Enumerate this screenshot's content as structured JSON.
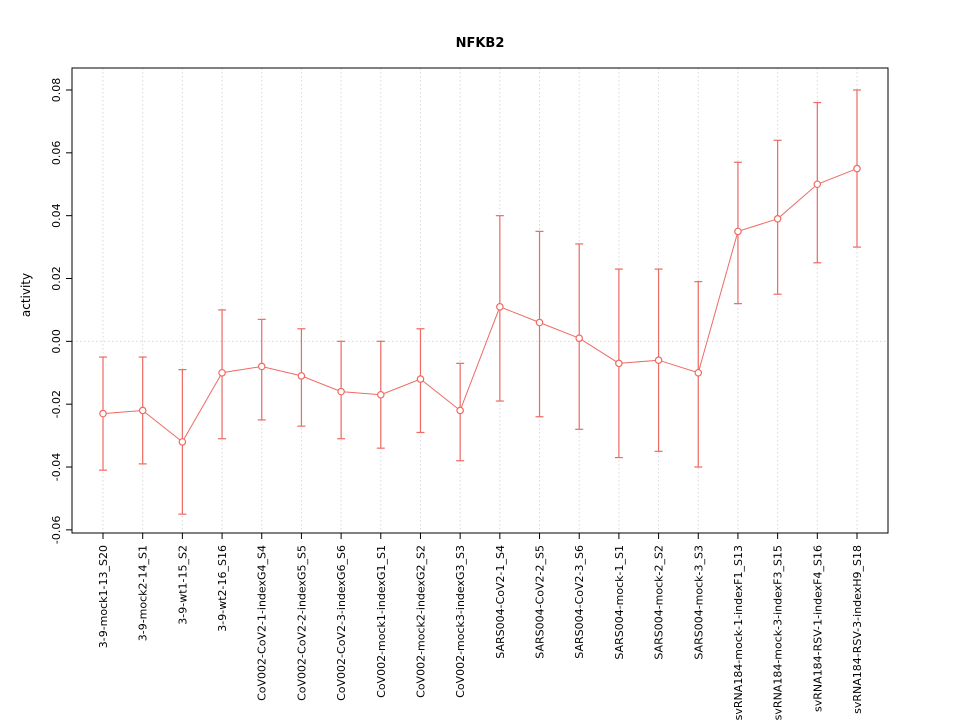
{
  "chart_data": {
    "type": "line",
    "title": "NFKB2",
    "ylabel": "activity",
    "xlabel": "",
    "ylim": [
      -0.06,
      0.08
    ],
    "y_ticks": [
      -0.06,
      -0.04,
      -0.02,
      0.0,
      0.02,
      0.04,
      0.06,
      0.08
    ],
    "legend": "none",
    "grid": {
      "vertical": "dotted-at-each-category",
      "horizontal_at": 0,
      "color": "#d8d8d8"
    },
    "color": "#ee6a63",
    "point_style": "open-circle-with-error-bars",
    "categories": [
      "3-9-mock1-13_S20",
      "3-9-mock2-14_S1",
      "3-9-wt1-15_S2",
      "3-9-wt2-16_S16",
      "CoV002-CoV2-1-indexG4_S4",
      "CoV002-CoV2-2-indexG5_S5",
      "CoV002-CoV2-3-indexG6_S6",
      "CoV002-mock1-indexG1_S1",
      "CoV002-mock2-indexG2_S2",
      "CoV002-mock3-indexG3_S3",
      "SARS004-CoV2-1_S4",
      "SARS004-CoV2-2_S5",
      "SARS004-CoV2-3_S6",
      "SARS004-mock-1_S1",
      "SARS004-mock-2_S2",
      "SARS004-mock-3_S3",
      "svRNA184-mock-1-indexF1_S13",
      "svRNA184-mock-3-indexF3_S15",
      "svRNA184-RSV-1-indexF4_S16",
      "svRNA184-RSV-3-indexH9_S18"
    ],
    "series": [
      {
        "name": "activity",
        "values": [
          -0.023,
          -0.022,
          -0.032,
          -0.01,
          -0.008,
          -0.011,
          -0.016,
          -0.017,
          -0.012,
          -0.022,
          0.011,
          0.006,
          0.001,
          -0.007,
          -0.006,
          -0.01,
          0.035,
          0.039,
          0.05,
          0.055
        ],
        "lower": [
          -0.041,
          -0.039,
          -0.055,
          -0.031,
          -0.025,
          -0.027,
          -0.031,
          -0.034,
          -0.029,
          -0.038,
          -0.019,
          -0.024,
          -0.028,
          -0.037,
          -0.035,
          -0.04,
          0.012,
          0.015,
          0.025,
          0.03
        ],
        "upper": [
          -0.005,
          -0.005,
          -0.009,
          0.01,
          0.007,
          0.004,
          0.0,
          0.0,
          0.004,
          -0.007,
          0.04,
          0.035,
          0.031,
          0.023,
          0.023,
          0.019,
          0.057,
          0.064,
          0.076,
          0.08
        ]
      }
    ]
  }
}
